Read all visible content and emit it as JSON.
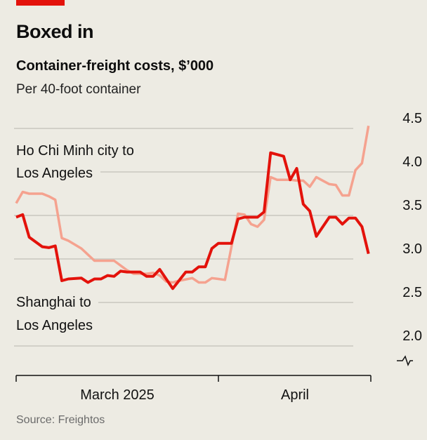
{
  "header": {
    "title": "Boxed in",
    "subtitle": "Container-freight costs, $’000",
    "unit": "Per 40-foot container"
  },
  "source": "Source: Freightos",
  "colors": {
    "brand": "#e3120b",
    "shanghai": "#e3120b",
    "hcmc": "#f5a28f",
    "grid": "#c9c7bf",
    "background": "#edebe3"
  },
  "chart_data": {
    "type": "line",
    "title": "Container-freight costs, $’000",
    "subtitle": "Per 40-foot container",
    "ylim": [
      2.0,
      4.5
    ],
    "yticks": [
      "4.5",
      "4.0",
      "3.5",
      "3.0",
      "2.5",
      "2.0"
    ],
    "ytick_values": [
      4.5,
      4.0,
      3.5,
      3.0,
      2.5,
      2.0
    ],
    "y_axis_side": "right",
    "y_axis_break": true,
    "xlim": [
      "2025-03-01",
      "2025-04-24"
    ],
    "xtick_labels": [
      "March 2025",
      "April"
    ],
    "grid": true,
    "series": [
      {
        "name": "Ho Chi Minh city to Los Angeles",
        "label_lines": [
          "Ho Chi Minh city to",
          "Los Angeles"
        ],
        "color": "#f5a28f",
        "x": [
          "2025-03-01",
          "2025-03-02",
          "2025-03-03",
          "2025-03-05",
          "2025-03-06",
          "2025-03-07",
          "2025-03-08",
          "2025-03-09",
          "2025-03-11",
          "2025-03-12",
          "2025-03-13",
          "2025-03-15",
          "2025-03-16",
          "2025-03-18",
          "2025-03-19",
          "2025-03-21",
          "2025-03-22",
          "2025-03-23",
          "2025-03-24",
          "2025-03-25",
          "2025-03-26",
          "2025-03-28",
          "2025-03-29",
          "2025-03-30",
          "2025-03-31",
          "2025-04-01",
          "2025-04-02",
          "2025-04-04",
          "2025-04-05",
          "2025-04-06",
          "2025-04-07",
          "2025-04-08",
          "2025-04-09",
          "2025-04-10",
          "2025-04-11",
          "2025-04-12",
          "2025-04-13",
          "2025-04-14",
          "2025-04-15",
          "2025-04-16",
          "2025-04-17",
          "2025-04-18",
          "2025-04-19",
          "2025-04-20",
          "2025-04-21",
          "2025-04-22",
          "2025-04-23",
          "2025-04-24"
        ],
        "values": [
          3.64,
          3.77,
          3.75,
          3.75,
          3.72,
          3.68,
          3.24,
          3.21,
          3.12,
          3.05,
          2.98,
          2.98,
          2.98,
          2.87,
          2.83,
          2.83,
          2.84,
          2.81,
          2.74,
          2.73,
          2.75,
          2.78,
          2.73,
          2.73,
          2.78,
          2.77,
          2.76,
          3.52,
          3.51,
          3.4,
          3.37,
          3.45,
          3.94,
          3.91,
          3.91,
          3.91,
          3.9,
          3.9,
          3.83,
          3.94,
          3.9,
          3.86,
          3.85,
          3.73,
          3.73,
          4.02,
          4.1,
          4.53
        ]
      },
      {
        "name": "Shanghai to Los Angeles",
        "label_lines": [
          "Shanghai to",
          "Los Angeles"
        ],
        "color": "#e3120b",
        "x": [
          "2025-03-01",
          "2025-03-02",
          "2025-03-03",
          "2025-03-05",
          "2025-03-06",
          "2025-03-07",
          "2025-03-08",
          "2025-03-09",
          "2025-03-11",
          "2025-03-12",
          "2025-03-13",
          "2025-03-14",
          "2025-03-15",
          "2025-03-16",
          "2025-03-17",
          "2025-03-18",
          "2025-03-20",
          "2025-03-21",
          "2025-03-22",
          "2025-03-23",
          "2025-03-25",
          "2025-03-27",
          "2025-03-28",
          "2025-03-29",
          "2025-03-30",
          "2025-03-31",
          "2025-04-01",
          "2025-04-03",
          "2025-04-04",
          "2025-04-05",
          "2025-04-07",
          "2025-04-08",
          "2025-04-09",
          "2025-04-11",
          "2025-04-12",
          "2025-04-13",
          "2025-04-14",
          "2025-04-15",
          "2025-04-16",
          "2025-04-18",
          "2025-04-19",
          "2025-04-20",
          "2025-04-21",
          "2025-04-22",
          "2025-04-23",
          "2025-04-24"
        ],
        "values": [
          3.48,
          3.51,
          3.25,
          3.14,
          3.13,
          3.15,
          2.75,
          2.77,
          2.78,
          2.73,
          2.77,
          2.77,
          2.81,
          2.8,
          2.86,
          2.85,
          2.85,
          2.8,
          2.8,
          2.88,
          2.66,
          2.85,
          2.85,
          2.91,
          2.91,
          3.12,
          3.18,
          3.18,
          3.46,
          3.48,
          3.48,
          3.54,
          4.22,
          4.18,
          3.91,
          4.04,
          3.63,
          3.55,
          3.26,
          3.48,
          3.48,
          3.4,
          3.47,
          3.47,
          3.37,
          3.06
        ]
      }
    ]
  }
}
